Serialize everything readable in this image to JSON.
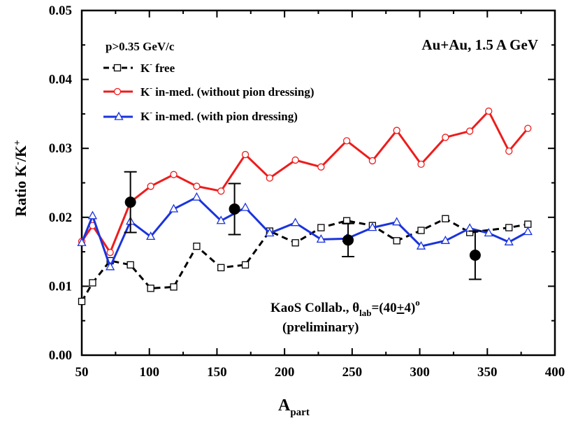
{
  "chart_data": {
    "type": "line",
    "xlabel": "A",
    "xlabel_sub": "part",
    "ylabel": "Ratio K",
    "ylabel_sup1": "-",
    "ylabel_mid": "/K",
    "ylabel_sup2": "+",
    "xlim": [
      50,
      400
    ],
    "ylim": [
      0.0,
      0.05
    ],
    "x_ticks": [
      50,
      100,
      150,
      200,
      250,
      300,
      350,
      400
    ],
    "x_tick_labels": [
      "50",
      "100",
      "150",
      "200",
      "250",
      "300",
      "350",
      "400"
    ],
    "y_ticks": [
      0.0,
      0.01,
      0.02,
      0.03,
      0.04,
      0.05
    ],
    "y_tick_labels": [
      "0.00",
      "0.01",
      "0.02",
      "0.03",
      "0.04",
      "0.05"
    ],
    "series": [
      {
        "name": "K free",
        "legend_prefix": "K",
        "legend_sup": "-",
        "legend_suffix": " free",
        "color": "#000000",
        "dash": "dashed",
        "marker": "square",
        "x": [
          50,
          58,
          71,
          86,
          101,
          118,
          135,
          153,
          171,
          189,
          208,
          227,
          246,
          265,
          283,
          301,
          319,
          337,
          366,
          380
        ],
        "y": [
          0.0078,
          0.0105,
          0.0137,
          0.0131,
          0.0097,
          0.0099,
          0.0158,
          0.0127,
          0.0131,
          0.018,
          0.0163,
          0.0185,
          0.0195,
          0.0188,
          0.0166,
          0.0181,
          0.0198,
          0.0178,
          0.0185,
          0.019
        ]
      },
      {
        "name": "K in-med. (without pion dressing)",
        "legend_prefix": "K",
        "legend_sup": "-",
        "legend_suffix": " in-med. (without pion dressing)",
        "color": "#ee1c1c",
        "dash": "solid",
        "marker": "circle",
        "x": [
          50,
          58,
          71,
          86,
          101,
          118,
          135,
          153,
          171,
          189,
          208,
          227,
          246,
          265,
          283,
          301,
          319,
          337,
          351,
          366,
          380
        ],
        "y": [
          0.0165,
          0.0188,
          0.0149,
          0.0222,
          0.0245,
          0.0262,
          0.0245,
          0.0238,
          0.0291,
          0.0257,
          0.0283,
          0.0273,
          0.0311,
          0.0282,
          0.0326,
          0.0277,
          0.0316,
          0.0325,
          0.0354,
          0.0296,
          0.0329
        ]
      },
      {
        "name": "K in-med. (with pion dressing)",
        "legend_prefix": "K",
        "legend_sup": "-",
        "legend_suffix": " in-med. (with pion dressing)",
        "color": "#1a33dd",
        "dash": "solid",
        "marker": "triangle",
        "x": [
          50,
          58,
          71,
          86,
          101,
          118,
          135,
          153,
          171,
          189,
          208,
          227,
          246,
          265,
          283,
          301,
          319,
          337,
          351,
          366,
          380
        ],
        "y": [
          0.0163,
          0.0202,
          0.0128,
          0.0194,
          0.0172,
          0.0212,
          0.0229,
          0.0195,
          0.0214,
          0.0177,
          0.0192,
          0.0168,
          0.0169,
          0.0185,
          0.0193,
          0.0158,
          0.0166,
          0.0184,
          0.0177,
          0.0164,
          0.0179
        ]
      }
    ],
    "measurements": {
      "name": "KaoS Collab. data",
      "marker": "filled-circle",
      "points": [
        {
          "x": 86,
          "y": 0.0222,
          "err": 0.0044
        },
        {
          "x": 163,
          "y": 0.0212,
          "err": 0.0037
        },
        {
          "x": 247,
          "y": 0.0167,
          "err": 0.0024
        },
        {
          "x": 341,
          "y": 0.0145,
          "err": 0.0035
        }
      ]
    },
    "annotations": {
      "momentum_cut": "p>0.35 GeV/c",
      "system": "Au+Au, 1.5 A GeV",
      "collab_prefix": "KaoS Collab., θ",
      "collab_sub": "lab",
      "collab_eq": "=(40",
      "collab_pm": "+",
      "collab_val": "4)",
      "collab_sup": "o",
      "preliminary": "(preliminary)"
    }
  }
}
